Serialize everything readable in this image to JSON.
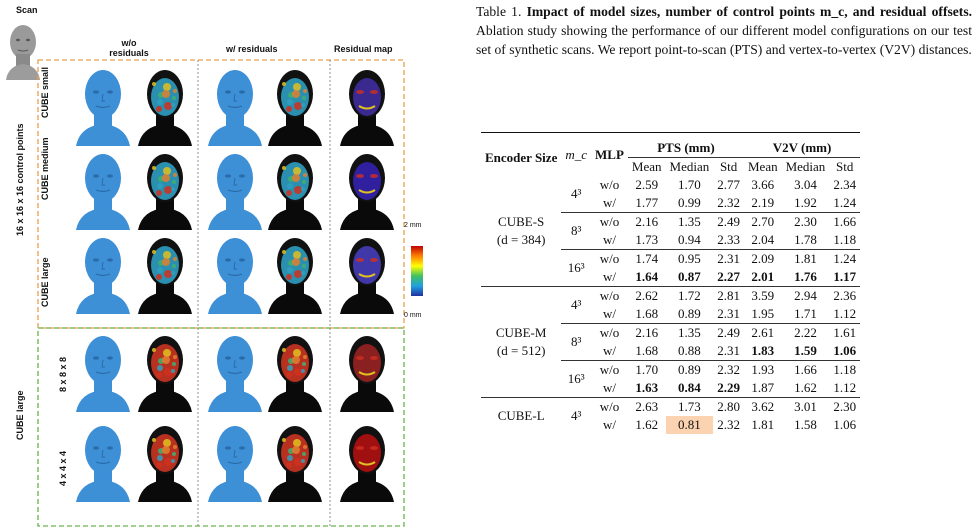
{
  "figure": {
    "scan_label": "Scan",
    "col_headers": [
      "w/o\nresiduals",
      "w/ residuals",
      "Residual map"
    ],
    "group_labels": [
      "16 x 16 x 16 control points",
      "CUBE large"
    ],
    "row_labels": [
      "CUBE small",
      "CUBE medium",
      "CUBE large",
      "8 x 8 x 8",
      "4 x 4 x 4"
    ],
    "colorbar_max": "2 mm",
    "colorbar_min": "0 mm",
    "colors": {
      "skin_blue": "#3d8fd6",
      "orange_dash": "#e8a04a",
      "green_dash": "#6ab04c"
    }
  },
  "caption": {
    "label": "Table 1.",
    "title": "Impact of model sizes, number of control points m_c, and residual offsets.",
    "body": "Ablation study showing the performance of our different model configurations on our test set of synthetic scans. We report point-to-scan (PTS) and vertex-to-vertex (V2V) distances."
  },
  "table": {
    "headers": {
      "encoder": "Encoder Size",
      "mc": "m_c",
      "mlp": "MLP",
      "pts": "PTS (mm)",
      "v2v": "V2V (mm)",
      "sub": [
        "Mean",
        "Median",
        "Std",
        "Mean",
        "Median",
        "Std"
      ]
    },
    "groups": [
      {
        "encoder": "CUBE-S",
        "d": "(d = 384)",
        "blocks": [
          {
            "mc": "4³",
            "rows": [
              {
                "mlp": "w/o",
                "v": [
                  "2.59",
                  "1.70",
                  "2.77",
                  "3.66",
                  "3.04",
                  "2.34"
                ]
              },
              {
                "mlp": "w/",
                "v": [
                  "1.77",
                  "0.99",
                  "2.32",
                  "2.19",
                  "1.92",
                  "1.24"
                ]
              }
            ]
          },
          {
            "mc": "8³",
            "rows": [
              {
                "mlp": "w/o",
                "v": [
                  "2.16",
                  "1.35",
                  "2.49",
                  "2.70",
                  "2.30",
                  "1.66"
                ]
              },
              {
                "mlp": "w/",
                "v": [
                  "1.73",
                  "0.94",
                  "2.33",
                  "2.04",
                  "1.78",
                  "1.18"
                ]
              }
            ]
          },
          {
            "mc": "16³",
            "rows": [
              {
                "mlp": "w/o",
                "v": [
                  "1.74",
                  "0.95",
                  "2.31",
                  "2.09",
                  "1.81",
                  "1.24"
                ]
              },
              {
                "mlp": "w/",
                "v": [
                  "1.64",
                  "0.87",
                  "2.27",
                  "2.01",
                  "1.76",
                  "1.17"
                ]
              }
            ]
          }
        ]
      },
      {
        "encoder": "CUBE-M",
        "d": "(d = 512)",
        "blocks": [
          {
            "mc": "4³",
            "rows": [
              {
                "mlp": "w/o",
                "v": [
                  "2.62",
                  "1.72",
                  "2.81",
                  "3.59",
                  "2.94",
                  "2.36"
                ]
              },
              {
                "mlp": "w/",
                "v": [
                  "1.68",
                  "0.89",
                  "2.31",
                  "1.95",
                  "1.71",
                  "1.12"
                ]
              }
            ]
          },
          {
            "mc": "8³",
            "rows": [
              {
                "mlp": "w/o",
                "v": [
                  "2.16",
                  "1.35",
                  "2.49",
                  "2.61",
                  "2.22",
                  "1.61"
                ]
              },
              {
                "mlp": "w/",
                "v": [
                  "1.68",
                  "0.88",
                  "2.31",
                  "1.83",
                  "1.59",
                  "1.06"
                ]
              }
            ]
          },
          {
            "mc": "16³",
            "rows": [
              {
                "mlp": "w/o",
                "v": [
                  "1.70",
                  "0.89",
                  "2.32",
                  "1.93",
                  "1.66",
                  "1.18"
                ]
              },
              {
                "mlp": "w/",
                "v": [
                  "1.63",
                  "0.84",
                  "2.29",
                  "1.87",
                  "1.62",
                  "1.12"
                ]
              }
            ]
          }
        ]
      },
      {
        "encoder": "CUBE-L",
        "d": "",
        "blocks": [
          {
            "mc": "4³",
            "rows": [
              {
                "mlp": "w/o",
                "v": [
                  "2.63",
                  "1.73",
                  "2.80",
                  "3.62",
                  "3.01",
                  "2.30"
                ]
              },
              {
                "mlp": "w/",
                "v": [
                  "1.62",
                  "0.81",
                  "2.32",
                  "1.81",
                  "1.58",
                  "1.06"
                ]
              }
            ]
          }
        ]
      }
    ]
  }
}
